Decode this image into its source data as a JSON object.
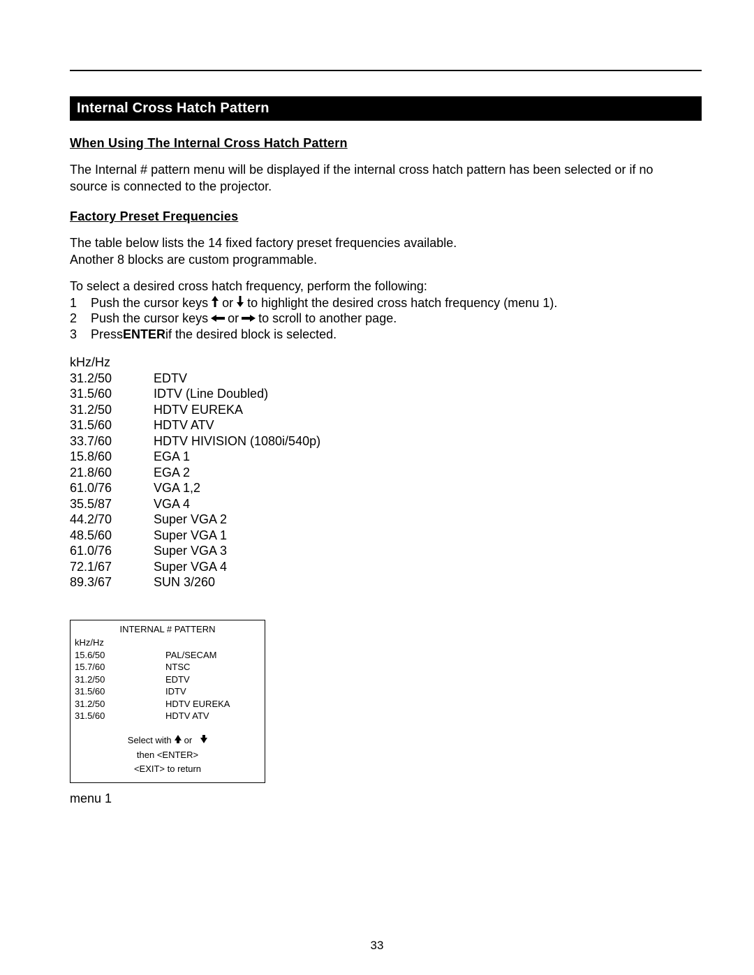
{
  "section_title": "Internal Cross Hatch Pattern",
  "sub1": "When Using The Internal Cross Hatch Pattern",
  "para1a": "The Internal # pattern menu will be displayed if the internal cross hatch pattern has been selected or if no",
  "para1b": "source is connected to the projector.",
  "sub2": "Factory Preset Frequencies",
  "para2a": "The table below lists the 14 fixed factory preset frequencies available.",
  "para2b": "Another 8 blocks are custom programmable.",
  "para3": "To select a desired cross hatch frequency, perform the following:",
  "steps": {
    "s1": {
      "n": "1",
      "pre": "Push the cursor keys",
      "post": "to highlight the desired cross hatch frequency (menu 1)."
    },
    "s2": {
      "n": "2",
      "pre": "Push the cursor keys",
      "post": "to scroll to another page."
    },
    "s3": {
      "n": "3",
      "pre": "Press ",
      "bold": "ENTER",
      "post": " if the desired block is selected."
    }
  },
  "or": "or",
  "freq_header": "kHz/Hz",
  "freq": [
    {
      "f": "31.2/50",
      "name": "EDTV"
    },
    {
      "f": "31.5/60",
      "name": "IDTV (Line Doubled)"
    },
    {
      "f": "31.2/50",
      "name": "HDTV EUREKA"
    },
    {
      "f": "31.5/60",
      "name": "HDTV ATV"
    },
    {
      "f": "33.7/60",
      "name": "HDTV HIVISION (1080i/540p)"
    },
    {
      "f": "15.8/60",
      "name": "EGA 1"
    },
    {
      "f": "21.8/60",
      "name": "EGA 2"
    },
    {
      "f": "61.0/76",
      "name": "VGA 1,2"
    },
    {
      "f": "35.5/87",
      "name": "VGA 4"
    },
    {
      "f": "44.2/70",
      "name": "Super VGA 2"
    },
    {
      "f": "48.5/60",
      "name": "Super VGA 1"
    },
    {
      "f": "61.0/76",
      "name": "Super VGA 3"
    },
    {
      "f": "72.1/67",
      "name": "Super VGA 4"
    },
    {
      "f": "89.3/67",
      "name": "SUN 3/260"
    }
  ],
  "menu": {
    "title": "INTERNAL # PATTERN",
    "header": "kHz/Hz",
    "rows": [
      {
        "f": "15.6/50",
        "name": "PAL/SECAM"
      },
      {
        "f": "15.7/60",
        "name": "NTSC"
      },
      {
        "f": "31.2/50",
        "name": "EDTV"
      },
      {
        "f": "31.5/60",
        "name": "IDTV"
      },
      {
        "f": "31.2/50",
        "name": "HDTV EUREKA"
      },
      {
        "f": "31.5/60",
        "name": "HDTV ATV"
      }
    ],
    "instr1_pre": "Select with",
    "instr1_or": "or",
    "instr2": "then <ENTER>",
    "instr3": "<EXIT> to return"
  },
  "menu_caption": "menu 1",
  "page_number": "33",
  "colors": {
    "bar_bg": "#000000",
    "bar_fg": "#ffffff",
    "text": "#000000",
    "bg": "#ffffff"
  }
}
